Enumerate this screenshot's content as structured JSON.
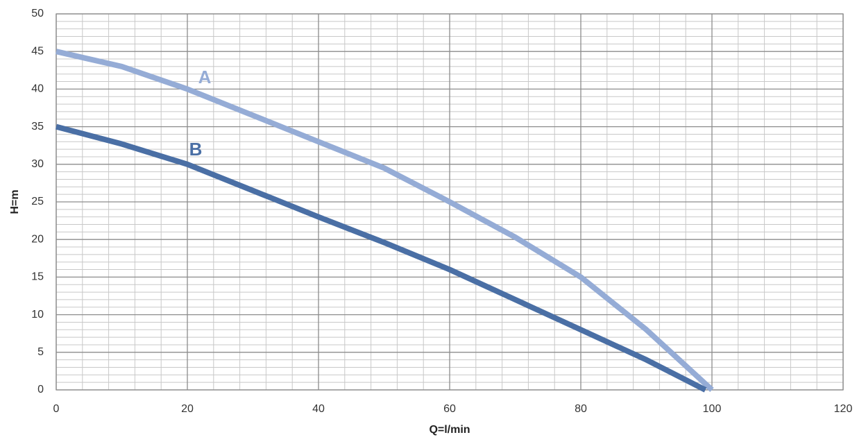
{
  "chart_data": {
    "type": "line",
    "x_label": "Q=l/min",
    "y_label": "H=m",
    "xlim": [
      0,
      120
    ],
    "xticks": [
      0,
      20,
      40,
      60,
      80,
      100,
      120
    ],
    "ylim": [
      0,
      50
    ],
    "yticks": [
      0,
      5,
      10,
      15,
      20,
      25,
      30,
      35,
      40,
      45,
      50
    ],
    "grid": true,
    "series": [
      {
        "name": "A",
        "color": "#95acd6",
        "x": [
          0,
          10,
          20,
          30,
          40,
          50,
          60,
          70,
          80,
          90,
          100
        ],
        "values": [
          45,
          43,
          40,
          36.5,
          33,
          29.5,
          25,
          20.3,
          15,
          8,
          0
        ]
      },
      {
        "name": "B",
        "color": "#4a6fa5",
        "x": [
          0,
          10,
          20,
          30,
          40,
          50,
          60,
          70,
          80,
          90,
          99
        ],
        "values": [
          35,
          32.7,
          30,
          26.5,
          23,
          19.6,
          16,
          12,
          8,
          4,
          0
        ]
      }
    ]
  }
}
